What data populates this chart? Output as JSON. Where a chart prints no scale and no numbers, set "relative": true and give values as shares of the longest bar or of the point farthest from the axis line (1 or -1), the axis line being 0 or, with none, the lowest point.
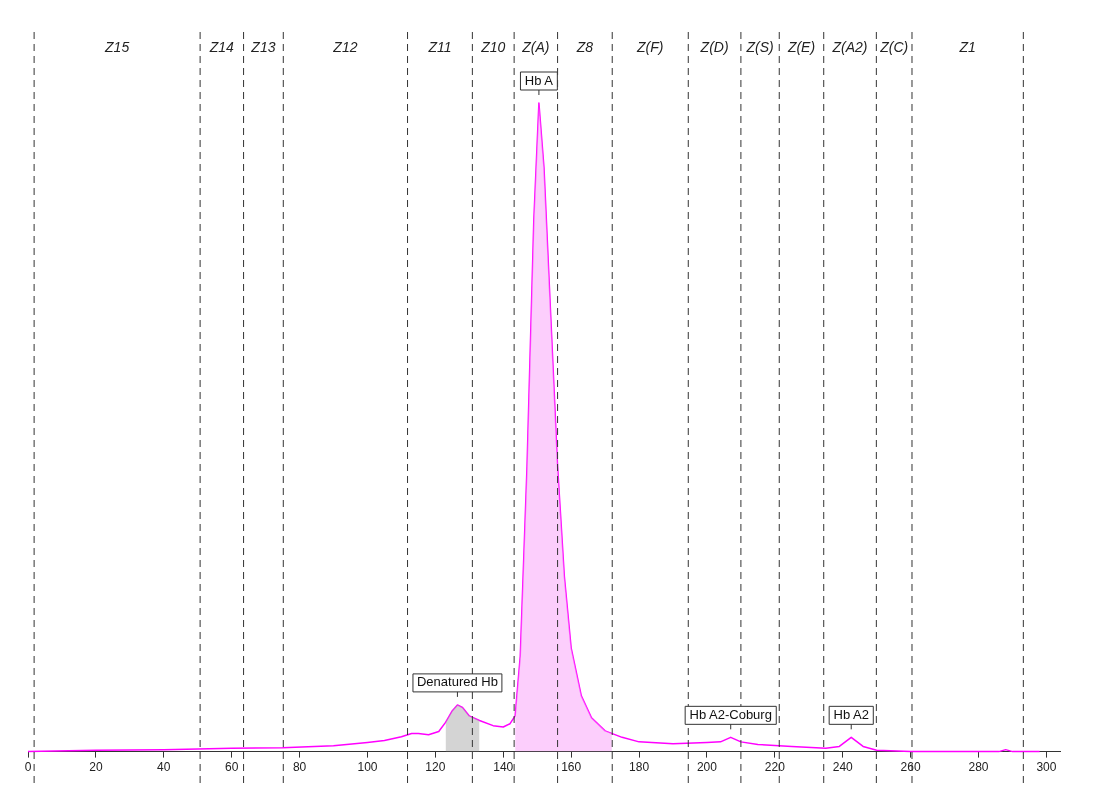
{
  "chart_data": {
    "type": "line",
    "relative": true,
    "legend": false,
    "grid": false,
    "tick_labels": "x",
    "marker": "none",
    "xlim": [
      0,
      304
    ],
    "xticks": [
      0,
      20,
      40,
      60,
      80,
      100,
      120,
      140,
      160,
      180,
      200,
      220,
      240,
      260,
      280,
      300
    ],
    "series": [
      {
        "type": "area",
        "color": "#f9a6f9",
        "x": [
          143.5,
          145,
          147,
          149,
          150.5,
          152,
          154,
          156,
          158,
          160,
          163,
          166,
          170,
          172
        ],
        "values": [
          0.055,
          0.147,
          0.44,
          0.82,
          1,
          0.9,
          0.67,
          0.44,
          0.27,
          0.16,
          0.086,
          0.052,
          0.032,
          0.028
        ]
      },
      {
        "type": "area",
        "color": "#b0b0b0",
        "x": [
          123,
          125,
          126.5,
          128,
          130,
          133
        ],
        "values": [
          0.045,
          0.063,
          0.072,
          0.068,
          0.055,
          0.048
        ]
      },
      {
        "type": "line",
        "color": "#ff00ff",
        "x": [
          0,
          20,
          40,
          60,
          75,
          90,
          100,
          105,
          110,
          113,
          115,
          118,
          121,
          123,
          125,
          126.5,
          128,
          130,
          133,
          137,
          140,
          142,
          143.5,
          145,
          147,
          149,
          150.5,
          152,
          154,
          156,
          158,
          160,
          163,
          166,
          170,
          175,
          180,
          190,
          200,
          204,
          207,
          210,
          215,
          225,
          235,
          239,
          242.5,
          246,
          250,
          260,
          286,
          288,
          290,
          298
        ],
        "values": [
          0,
          0.002,
          0.003,
          0.005,
          0.006,
          0.009,
          0.014,
          0.017,
          0.023,
          0.028,
          0.028,
          0.026,
          0.031,
          0.045,
          0.063,
          0.072,
          0.068,
          0.055,
          0.048,
          0.04,
          0.038,
          0.043,
          0.055,
          0.147,
          0.44,
          0.82,
          1,
          0.9,
          0.67,
          0.44,
          0.27,
          0.16,
          0.086,
          0.052,
          0.032,
          0.022,
          0.015,
          0.012,
          0.014,
          0.015,
          0.022,
          0.015,
          0.011,
          0.008,
          0.005,
          0.008,
          0.022,
          0.008,
          0.002,
          0,
          0,
          0.003,
          0,
          0
        ]
      }
    ],
    "ref_lines": [
      {
        "axis": "x",
        "value": 1.8,
        "line_style": "dashed"
      },
      {
        "axis": "x",
        "value": 50.7,
        "line_style": "dashed"
      },
      {
        "axis": "x",
        "value": 63.5,
        "line_style": "dashed"
      },
      {
        "axis": "x",
        "value": 75.2,
        "line_style": "dashed"
      },
      {
        "axis": "x",
        "value": 111.8,
        "line_style": "dashed"
      },
      {
        "axis": "x",
        "value": 130.9,
        "line_style": "dashed"
      },
      {
        "axis": "x",
        "value": 143.2,
        "line_style": "dashed"
      },
      {
        "axis": "x",
        "value": 156,
        "line_style": "dashed"
      },
      {
        "axis": "x",
        "value": 172.1,
        "line_style": "dashed"
      },
      {
        "axis": "x",
        "value": 194.5,
        "line_style": "dashed"
      },
      {
        "axis": "x",
        "value": 210,
        "line_style": "dashed"
      },
      {
        "axis": "x",
        "value": 221.3,
        "line_style": "dashed"
      },
      {
        "axis": "x",
        "value": 234.4,
        "line_style": "dashed"
      },
      {
        "axis": "x",
        "value": 249.9,
        "line_style": "dashed"
      },
      {
        "axis": "x",
        "value": 260.4,
        "line_style": "dashed"
      },
      {
        "axis": "x",
        "value": 293.2,
        "line_style": "dashed"
      }
    ],
    "annotations": [
      "Z15",
      "Z14",
      "Z13",
      "Z12",
      "Z11",
      "Z10",
      "Z(A)",
      "Z8",
      "Z(F)",
      "Z(D)",
      "Z(S)",
      "Z(E)",
      "Z(A2)",
      "Z(C)",
      "Z1",
      {
        "text": "Hb A",
        "x": 150.5,
        "y": 1
      },
      {
        "text": "Denatured Hb",
        "x": 126.5,
        "y": 0.072
      },
      {
        "text": "Hb A2-Coburg",
        "x": 207,
        "y": 0.022
      },
      {
        "text": "Hb A2",
        "x": 242.5,
        "y": 0.022
      }
    ]
  }
}
